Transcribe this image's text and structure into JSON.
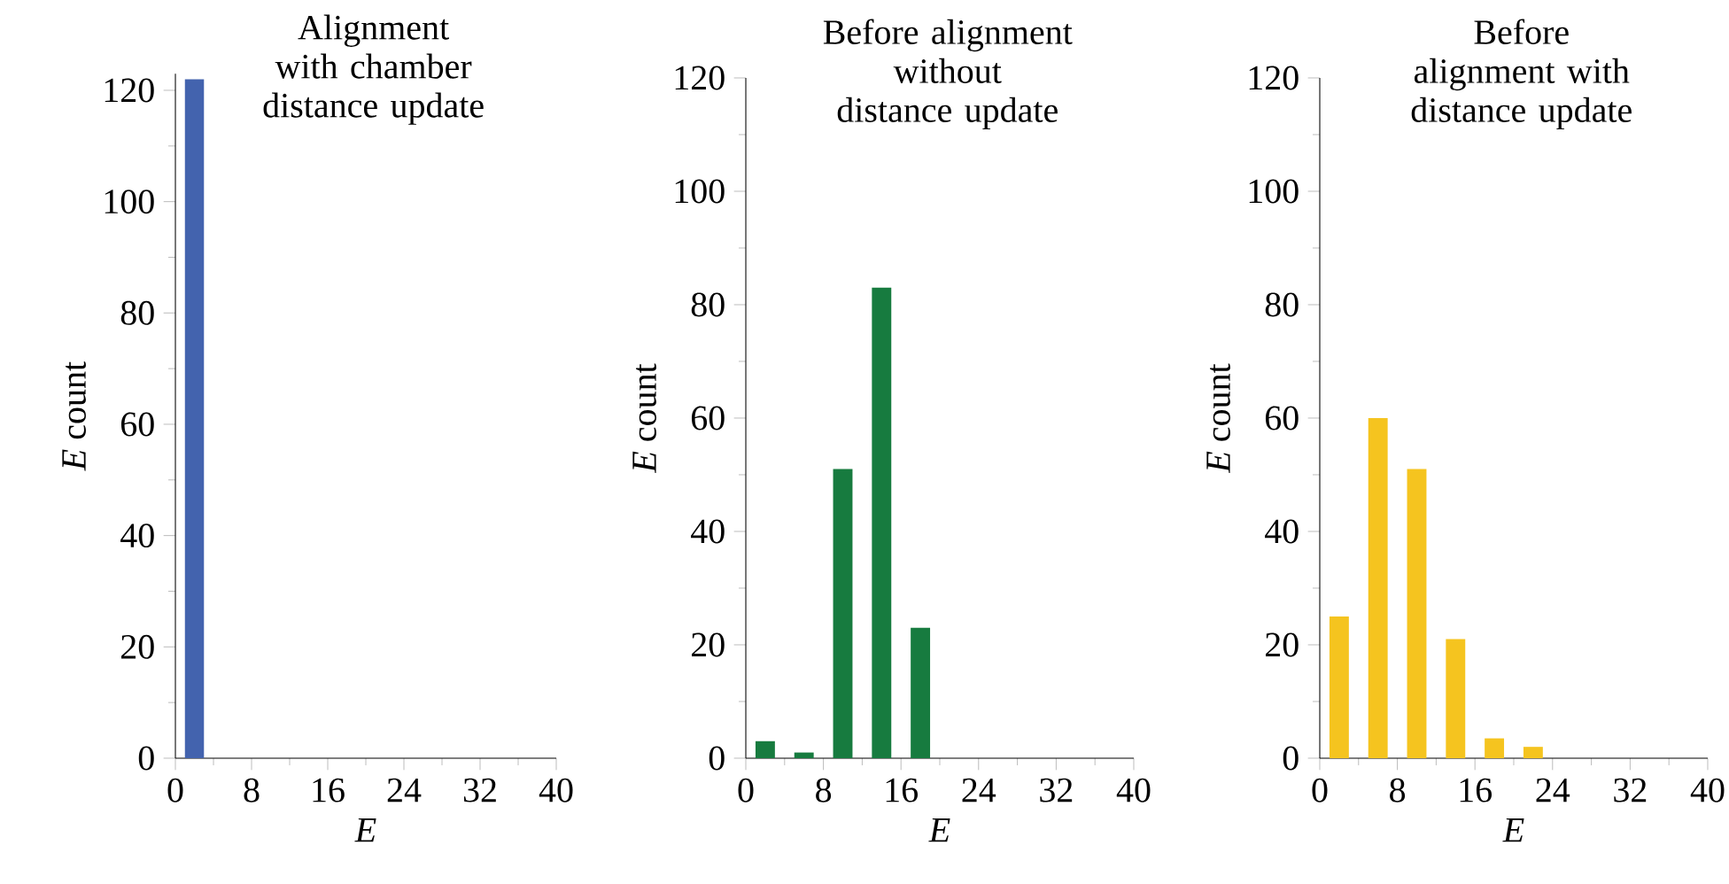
{
  "chart_data": [
    {
      "type": "histogram",
      "title": "Alignment with chamber distance update",
      "xlabel": "E",
      "ylabel": "*E* count",
      "color": "#4363ae",
      "bins": [
        0,
        4,
        8,
        12,
        16,
        20,
        24,
        28,
        32,
        36,
        40
      ],
      "values": [
        122,
        0,
        0,
        0,
        0,
        0,
        0,
        0,
        0,
        0
      ],
      "xlim": [
        0,
        40
      ],
      "ylim": [
        0,
        123
      ],
      "xticks": [
        0,
        {
          "value": 4,
          "label": null
        },
        8,
        {
          "value": 12,
          "label": null
        },
        16,
        {
          "value": 20,
          "label": null
        },
        24,
        {
          "value": 28,
          "label": null
        },
        32,
        {
          "value": 36,
          "label": null
        },
        40
      ],
      "yticks": [
        0,
        {
          "value": 10,
          "label": null
        },
        20,
        {
          "value": 30,
          "label": null
        },
        40,
        {
          "value": 50,
          "label": null
        },
        60,
        {
          "value": 70,
          "label": null
        },
        80,
        {
          "value": 90,
          "label": null
        },
        100,
        {
          "value": 110,
          "label": null
        },
        120
      ]
    },
    {
      "type": "histogram",
      "title": "Before alignment without distance update",
      "xlabel": "E",
      "ylabel": "*E* count",
      "color": "#177b3f",
      "bins": [
        0,
        4,
        8,
        12,
        16,
        20,
        24,
        28,
        32,
        36,
        40
      ],
      "values": [
        3,
        1,
        51,
        83,
        23,
        0,
        0,
        0,
        0,
        0
      ],
      "xlim": [
        0,
        40
      ],
      "ylim": [
        0,
        120
      ],
      "xticks": [
        0,
        {
          "value": 4,
          "label": null
        },
        8,
        {
          "value": 12,
          "label": null
        },
        16,
        {
          "value": 20,
          "label": null
        },
        24,
        {
          "value": 28,
          "label": null
        },
        32,
        {
          "value": 36,
          "label": null
        },
        40
      ],
      "yticks": [
        0,
        {
          "value": 10,
          "label": null
        },
        20,
        {
          "value": 30,
          "label": null
        },
        40,
        {
          "value": 50,
          "label": null
        },
        60,
        {
          "value": 70,
          "label": null
        },
        80,
        {
          "value": 90,
          "label": null
        },
        100,
        {
          "value": 110,
          "label": null
        },
        120
      ]
    },
    {
      "type": "histogram",
      "title": "Before alignment with distance update",
      "xlabel": "E",
      "ylabel": "*E* count",
      "color": "#f5c41f",
      "bins": [
        0,
        4,
        8,
        12,
        16,
        20,
        24,
        28,
        32,
        36,
        40
      ],
      "values": [
        25,
        60,
        51,
        21,
        3.5,
        2,
        0,
        0,
        0,
        0
      ],
      "xlim": [
        0,
        40
      ],
      "ylim": [
        0,
        120
      ],
      "xticks": [
        0,
        {
          "value": 4,
          "label": null
        },
        8,
        {
          "value": 12,
          "label": null
        },
        16,
        {
          "value": 20,
          "label": null
        },
        24,
        {
          "value": 28,
          "label": null
        },
        32,
        {
          "value": 36,
          "label": null
        },
        40
      ],
      "yticks": [
        0,
        {
          "value": 10,
          "label": null
        },
        20,
        {
          "value": 30,
          "label": null
        },
        40,
        {
          "value": 50,
          "label": null
        },
        60,
        {
          "value": 70,
          "label": null
        },
        80,
        {
          "value": 90,
          "label": null
        },
        100,
        {
          "value": 110,
          "label": null
        },
        120
      ]
    }
  ]
}
